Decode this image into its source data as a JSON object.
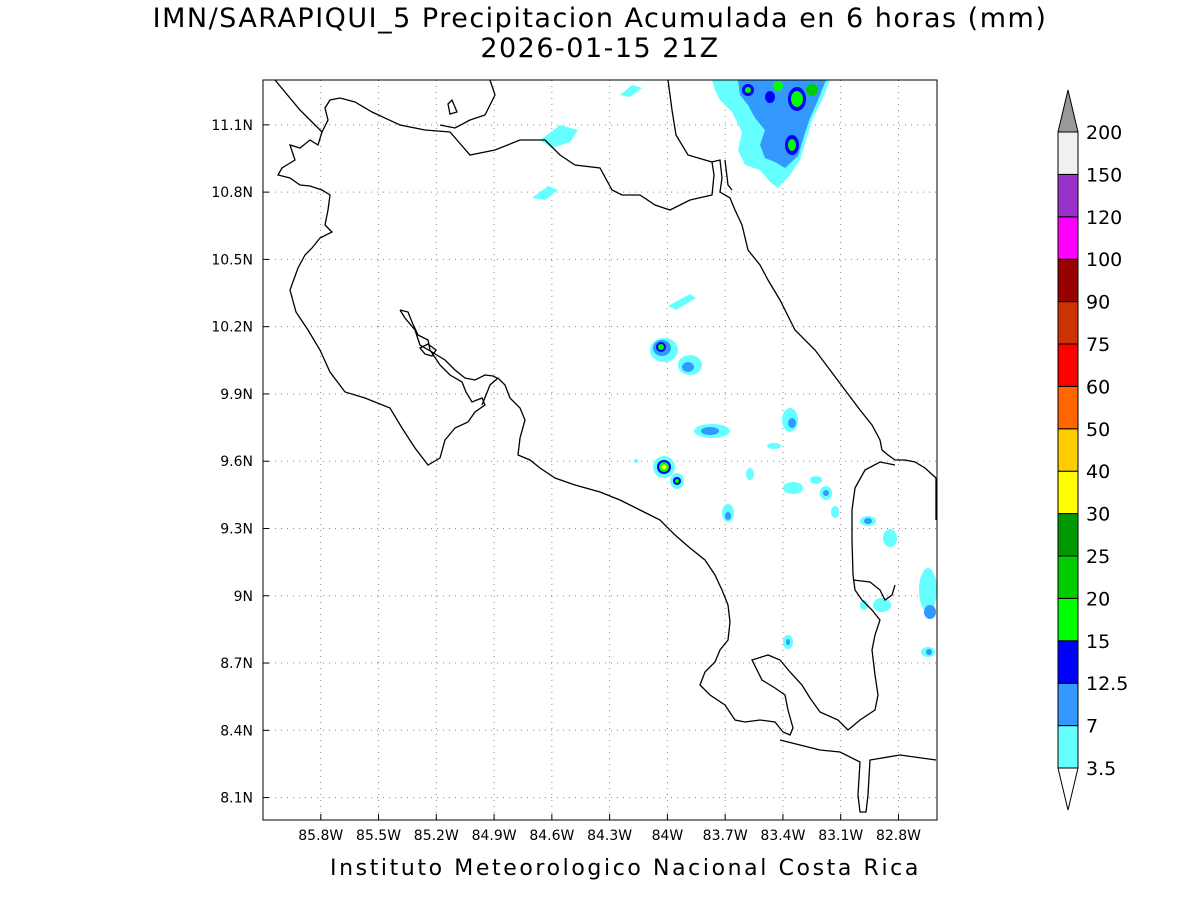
{
  "title": {
    "line1": "IMN/SARAPIQUI_5 Precipitacion Acumulada en 6 horas (mm)",
    "line2": "2026-01-15 21Z"
  },
  "footer": "Instituto Meteorologico Nacional Costa Rica",
  "map": {
    "lon_range": [
      -86.1,
      -82.6
    ],
    "lat_range": [
      8.0,
      11.3
    ],
    "lon_ticks": [
      {
        "v": -85.8,
        "label": "85.8W"
      },
      {
        "v": -85.5,
        "label": "85.5W"
      },
      {
        "v": -85.2,
        "label": "85.2W"
      },
      {
        "v": -84.9,
        "label": "84.9W"
      },
      {
        "v": -84.6,
        "label": "84.6W"
      },
      {
        "v": -84.3,
        "label": "84.3W"
      },
      {
        "v": -84.0,
        "label": "84W"
      },
      {
        "v": -83.7,
        "label": "83.7W"
      },
      {
        "v": -83.4,
        "label": "83.4W"
      },
      {
        "v": -83.1,
        "label": "83.1W"
      },
      {
        "v": -82.8,
        "label": "82.8W"
      }
    ],
    "lat_ticks": [
      {
        "v": 8.1,
        "label": "8.1N"
      },
      {
        "v": 8.4,
        "label": "8.4N"
      },
      {
        "v": 8.7,
        "label": "8.7N"
      },
      {
        "v": 9.0,
        "label": "9N"
      },
      {
        "v": 9.3,
        "label": "9.3N"
      },
      {
        "v": 9.6,
        "label": "9.6N"
      },
      {
        "v": 9.9,
        "label": "9.9N"
      },
      {
        "v": 10.2,
        "label": "10.2N"
      },
      {
        "v": 10.5,
        "label": "10.5N"
      },
      {
        "v": 10.8,
        "label": "10.8N"
      },
      {
        "v": 11.1,
        "label": "11.1N"
      }
    ],
    "grid": "dotted"
  },
  "colorbar": {
    "levels": [
      "3.5",
      "7",
      "12.5",
      "15",
      "20",
      "25",
      "30",
      "40",
      "50",
      "60",
      "75",
      "90",
      "100",
      "120",
      "150",
      "200"
    ],
    "colors": [
      "#ffffff",
      "#66ffff",
      "#3399ff",
      "#0000ff",
      "#00ff00",
      "#00cc00",
      "#009900",
      "#ffff00",
      "#ffcc00",
      "#ff6600",
      "#ff0000",
      "#cc3300",
      "#990000",
      "#ff00ff",
      "#9933cc",
      "#f0f0f0",
      "#999999"
    ]
  }
}
